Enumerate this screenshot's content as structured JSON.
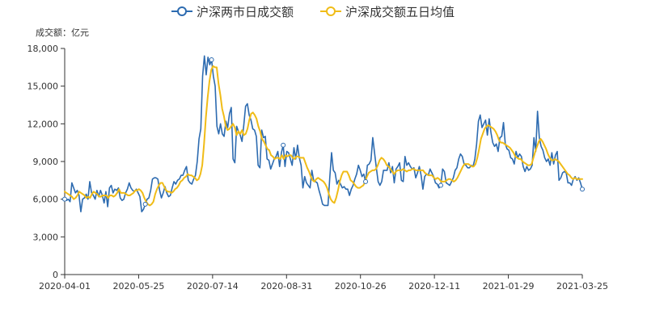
{
  "chart_data": {
    "type": "line",
    "unit_label_prefix": "成交额",
    "unit_label_suffix": "：亿元",
    "legend_position": "top-center",
    "ylim": [
      0,
      18000
    ],
    "y_ticks": [
      0,
      3000,
      6000,
      9000,
      12000,
      15000,
      18000
    ],
    "y_tick_labels": [
      "0",
      "3,000",
      "6,000",
      "9,000",
      "12,000",
      "15,000",
      "18,000"
    ],
    "x_tick_labels": [
      "2020-04-01",
      "2020-05-25",
      "2020-07-14",
      "2020-08-31",
      "2020-10-26",
      "2020-12-11",
      "2021-01-29",
      "2021-03-25"
    ],
    "grid": false,
    "series": [
      {
        "name": "沪深两市日成交额",
        "color": "#2d6bb0",
        "values": [
          6000,
          5900,
          6000,
          5800,
          7300,
          6900,
          6500,
          6700,
          6300,
          5000,
          6000,
          6100,
          6400,
          6000,
          7400,
          6500,
          6300,
          6000,
          6700,
          6200,
          6700,
          6300,
          5700,
          6600,
          5400,
          6900,
          7100,
          6500,
          6800,
          6700,
          6900,
          6100,
          5900,
          6000,
          6500,
          6800,
          7300,
          6900,
          6700,
          6600,
          6800,
          6500,
          6200,
          5000,
          5200,
          5600,
          6000,
          6100,
          6700,
          7600,
          7700,
          7700,
          7600,
          6700,
          6100,
          6500,
          7000,
          6500,
          6200,
          6300,
          6900,
          7400,
          7200,
          7500,
          7600,
          7900,
          7900,
          8300,
          8600,
          7500,
          7300,
          7200,
          7600,
          7900,
          9000,
          10800,
          11600,
          15800,
          17400,
          15900,
          17300,
          16700,
          17100,
          15800,
          15000,
          11800,
          11200,
          12000,
          11200,
          11000,
          12200,
          11700,
          12800,
          13300,
          9200,
          8900,
          11800,
          11400,
          11100,
          10600,
          11900,
          13400,
          13600,
          12700,
          12300,
          11600,
          11500,
          11000,
          8700,
          8500,
          11500,
          10900,
          11000,
          9200,
          9100,
          8400,
          8800,
          9200,
          9400,
          9800,
          8600,
          9700,
          10300,
          8600,
          9800,
          9700,
          9200,
          8700,
          10100,
          9200,
          10300,
          9300,
          8700,
          6900,
          7800,
          7300,
          7100,
          6900,
          8300,
          7500,
          7400,
          7300,
          6700,
          6200,
          5600,
          5500,
          5500,
          5500,
          7700,
          9700,
          8300,
          8100,
          7200,
          7500,
          7200,
          6900,
          7000,
          6800,
          6800,
          6300,
          6800,
          7100,
          7600,
          8000,
          8700,
          8300,
          7800,
          8000,
          7400,
          8700,
          8800,
          9100,
          10900,
          9700,
          8500,
          7400,
          7100,
          7400,
          8300,
          8300,
          8300,
          8900,
          8100,
          8600,
          7300,
          8400,
          8600,
          8900,
          7500,
          7400,
          9400,
          8700,
          8900,
          8600,
          8400,
          8500,
          7700,
          8100,
          8600,
          7900,
          6800,
          7800,
          8000,
          7900,
          8400,
          8100,
          7800,
          7300,
          7200,
          6900,
          7100,
          8400,
          8200,
          7300,
          7200,
          7100,
          7400,
          7700,
          8300,
          8500,
          9200,
          9600,
          9400,
          8800,
          8700,
          8500,
          8500,
          8700,
          8600,
          9200,
          10400,
          12200,
          12700,
          11700,
          12000,
          12300,
          11100,
          12400,
          11300,
          10500,
          10200,
          10400,
          9800,
          10900,
          11000,
          12100,
          10400,
          10000,
          9900,
          9300,
          9200,
          8800,
          9800,
          9300,
          9600,
          9400,
          8600,
          8200,
          8600,
          8300,
          8400,
          8700,
          10900,
          9800,
          13000,
          10900,
          10200,
          9900,
          9300,
          9000,
          9200,
          8700,
          9700,
          8800,
          9500,
          9800,
          7500,
          7700,
          8100,
          8200,
          8100,
          7300,
          7300,
          7100,
          7600,
          7800,
          7500,
          7700,
          7300,
          6800
        ]
      },
      {
        "name": "沪深成交额五日均值",
        "color": "#f0bc17",
        "values": [
          6600,
          6500,
          6400,
          6300,
          6200,
          6000,
          6100,
          6300,
          6600,
          6500,
          6400,
          6300,
          6100,
          6200,
          6100,
          6400,
          6600,
          6500,
          6400,
          6200,
          6200,
          6300,
          6300,
          6300,
          6100,
          6300,
          6300,
          6200,
          6300,
          6500,
          6800,
          6500,
          6500,
          6500,
          6400,
          6300,
          6300,
          6400,
          6500,
          6700,
          6700,
          6800,
          6700,
          6500,
          6100,
          5800,
          5600,
          5500,
          5600,
          5800,
          6400,
          6800,
          7100,
          7300,
          7300,
          7000,
          6700,
          6600,
          6600,
          6500,
          6600,
          6800,
          6900,
          7100,
          7400,
          7500,
          7700,
          7800,
          8000,
          7900,
          7900,
          7800,
          7700,
          7500,
          7600,
          8000,
          8700,
          10400,
          12500,
          14100,
          15400,
          16300,
          16600,
          16500,
          16500,
          15200,
          14300,
          13200,
          12600,
          11800,
          11500,
          11600,
          11800,
          12000,
          11700,
          11100,
          11400,
          11200,
          11500,
          11100,
          11200,
          11600,
          12300,
          12800,
          12900,
          12700,
          12400,
          11800,
          11400,
          10800,
          10600,
          10300,
          10000,
          9900,
          9500,
          9400,
          9200,
          9300,
          9300,
          9200,
          9500,
          9200,
          9500,
          9400,
          9500,
          9500,
          9300,
          9200,
          9400,
          9400,
          9300,
          9300,
          9300,
          8900,
          8500,
          8200,
          7800,
          7500,
          7400,
          7600,
          7700,
          7600,
          7500,
          7400,
          7200,
          6900,
          6400,
          6000,
          5800,
          5700,
          6100,
          6700,
          7400,
          7900,
          8200,
          8200,
          8200,
          7900,
          7500,
          7400,
          7200,
          7000,
          6900,
          6900,
          7000,
          7100,
          7400,
          7800,
          8100,
          8200,
          8300,
          8300,
          8400,
          8700,
          9100,
          9300,
          9200,
          9000,
          8700,
          8600,
          8400,
          8200,
          8000,
          8200,
          8300,
          8300,
          8300,
          8400,
          8300,
          8200,
          8300,
          8300,
          8400,
          8400,
          8300,
          8300,
          8300,
          8300,
          8300,
          8100,
          8000,
          7900,
          7900,
          7900,
          7700,
          7600,
          7700,
          7600,
          7400,
          7400,
          7400,
          7500,
          7600,
          7600,
          7500,
          7400,
          7500,
          7700,
          8000,
          8300,
          8600,
          8800,
          8800,
          8800,
          8700,
          8600,
          8600,
          8800,
          9300,
          10000,
          10800,
          11200,
          11600,
          11800,
          11900,
          11800,
          11700,
          11600,
          11400,
          11100,
          10700,
          10500,
          10500,
          10400,
          10300,
          10200,
          10100,
          9900,
          9700,
          9400,
          9300,
          9200,
          9200,
          9000,
          8900,
          8800,
          8700,
          8700,
          8800,
          9300,
          9800,
          10200,
          10600,
          10800,
          10600,
          10300,
          10000,
          9600,
          9300,
          9100,
          9100,
          9200,
          9100,
          9000,
          8800,
          8600,
          8400,
          8200,
          8000,
          7900,
          7700,
          7600,
          7700,
          7600,
          7600,
          7600,
          7600
        ]
      }
    ]
  }
}
